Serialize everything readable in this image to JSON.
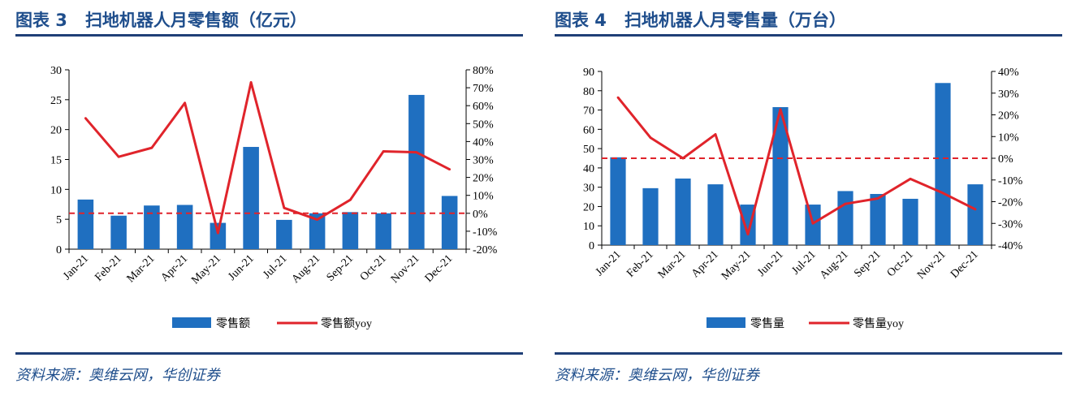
{
  "figures": [
    {
      "title_prefix": "图表 3",
      "title": "扫地机器人月零售额（亿元）",
      "source": "资料来源：奥维云网，华创证券"
    },
    {
      "title_prefix": "图表 4",
      "title": "扫地机器人月零售量（万台）",
      "source": "资料来源：奥维云网，华创证券"
    }
  ],
  "chart_data": [
    {
      "type": "bar",
      "categories": [
        "Jan-21",
        "Feb-21",
        "Mar-21",
        "Apr-21",
        "May-21",
        "Jun-21",
        "Jul-21",
        "Aug-21",
        "Sep-21",
        "Oct-21",
        "Nov-21",
        "Dec-21"
      ],
      "series": [
        {
          "name": "零售额",
          "type": "bar",
          "axis": "left",
          "color": "#1f6fc0",
          "values": [
            8.3,
            5.6,
            7.3,
            7.4,
            4.4,
            17.1,
            4.9,
            6.0,
            6.2,
            6.0,
            25.8,
            8.9
          ]
        },
        {
          "name": "零售额yoy",
          "type": "line",
          "axis": "right",
          "color": "#e0242b",
          "values": [
            53.0,
            31.5,
            36.5,
            61.5,
            -11.0,
            73.0,
            3.0,
            -3.5,
            7.5,
            34.5,
            34.0,
            24.5
          ]
        }
      ],
      "reference_line": {
        "axis": "right",
        "value": 0,
        "style": "dashed",
        "color": "#e0242b"
      },
      "ylim_left": [
        0,
        30
      ],
      "yticks_left": [
        0,
        5,
        10,
        15,
        20,
        25,
        30
      ],
      "ylim_right": [
        -20,
        80
      ],
      "yticks_right": [
        "-20%",
        "-10%",
        "0%",
        "10%",
        "20%",
        "30%",
        "40%",
        "50%",
        "60%",
        "70%",
        "80%"
      ],
      "legend_position": "bottom",
      "grid": false
    },
    {
      "type": "bar",
      "categories": [
        "Jan-21",
        "Feb-21",
        "Mar-21",
        "Apr-21",
        "May-21",
        "Jun-21",
        "Jul-21",
        "Aug-21",
        "Sep-21",
        "Oct-21",
        "Nov-21",
        "Dec-21"
      ],
      "series": [
        {
          "name": "零售量",
          "type": "bar",
          "axis": "left",
          "color": "#1f6fc0",
          "values": [
            45.5,
            29.5,
            34.5,
            31.5,
            21.0,
            71.5,
            21.0,
            28.0,
            26.5,
            24.0,
            84.0,
            31.5
          ]
        },
        {
          "name": "零售量yoy",
          "type": "line",
          "axis": "right",
          "color": "#e0242b",
          "values": [
            28.0,
            9.5,
            0.0,
            11.0,
            -35.0,
            22.5,
            -30.0,
            -21.0,
            -18.5,
            -9.5,
            -16.0,
            -23.5
          ]
        }
      ],
      "reference_line": {
        "axis": "right",
        "value": 0,
        "style": "dashed",
        "color": "#e0242b"
      },
      "ylim_left": [
        0,
        90
      ],
      "yticks_left": [
        0,
        10,
        20,
        30,
        40,
        50,
        60,
        70,
        80,
        90
      ],
      "ylim_right": [
        -40,
        40
      ],
      "yticks_right": [
        "-40%",
        "-30%",
        "-20%",
        "-10%",
        "0%",
        "10%",
        "20%",
        "30%",
        "40%"
      ],
      "legend_position": "bottom",
      "grid": false
    }
  ]
}
